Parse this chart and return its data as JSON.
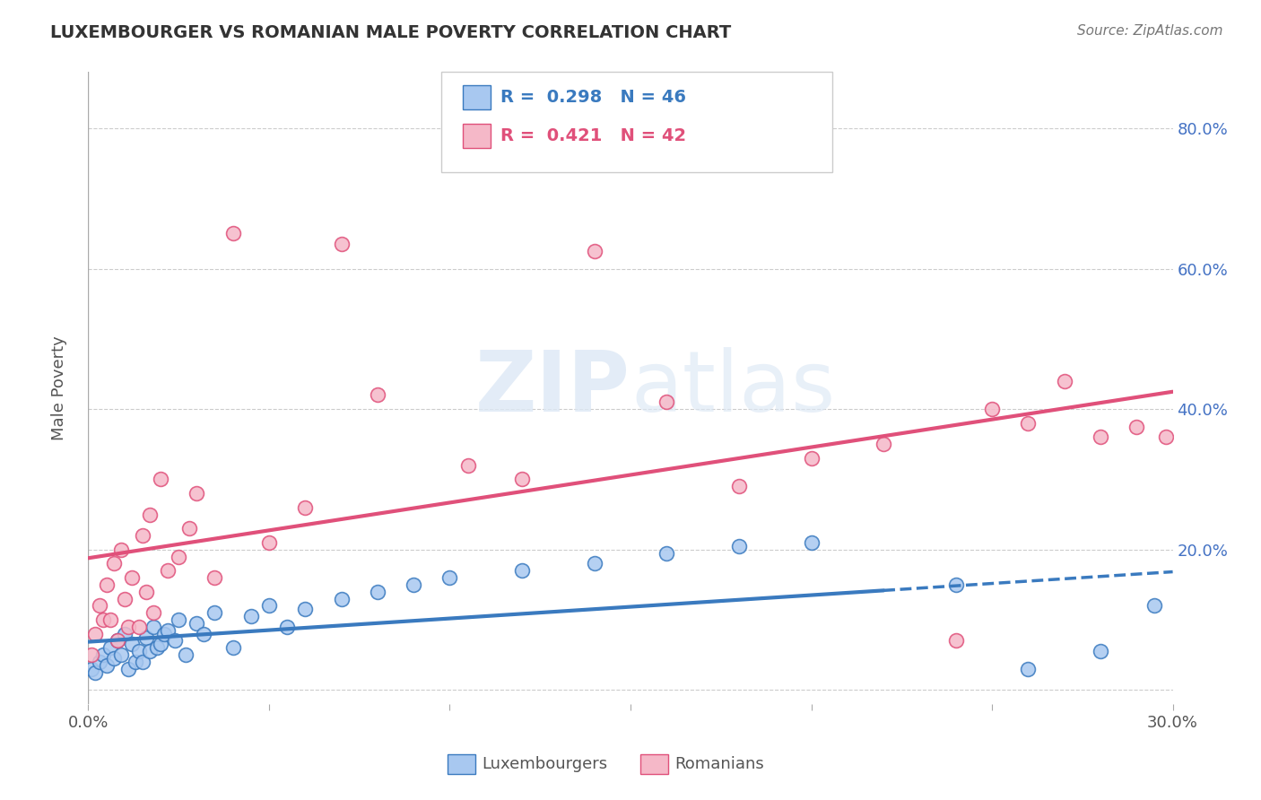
{
  "title": "LUXEMBOURGER VS ROMANIAN MALE POVERTY CORRELATION CHART",
  "source": "Source: ZipAtlas.com",
  "ylabel": "Male Poverty",
  "xlim": [
    0.0,
    30.0
  ],
  "ylim": [
    -2.0,
    88.0
  ],
  "yticks": [
    0.0,
    20.0,
    40.0,
    60.0,
    80.0
  ],
  "ytick_labels": [
    "",
    "20.0%",
    "40.0%",
    "60.0%",
    "80.0%"
  ],
  "xticks": [
    0.0,
    5.0,
    10.0,
    15.0,
    20.0,
    25.0,
    30.0
  ],
  "lux_color": "#a8c8f0",
  "lux_line_color": "#3a7abf",
  "rom_color": "#f5b8c8",
  "rom_line_color": "#e0507a",
  "lux_R": 0.298,
  "lux_N": 46,
  "rom_R": 0.421,
  "rom_N": 42,
  "legend_label_lux": "Luxembourgers",
  "legend_label_rom": "Romanians",
  "lux_x": [
    0.1,
    0.2,
    0.3,
    0.4,
    0.5,
    0.6,
    0.7,
    0.8,
    0.9,
    1.0,
    1.1,
    1.2,
    1.3,
    1.4,
    1.5,
    1.6,
    1.7,
    1.8,
    1.9,
    2.0,
    2.1,
    2.2,
    2.4,
    2.5,
    2.7,
    3.0,
    3.2,
    3.5,
    4.0,
    4.5,
    5.0,
    5.5,
    6.0,
    7.0,
    8.0,
    9.0,
    10.0,
    12.0,
    14.0,
    16.0,
    18.0,
    20.0,
    24.0,
    26.0,
    28.0,
    29.5
  ],
  "lux_y": [
    3.0,
    2.5,
    4.0,
    5.0,
    3.5,
    6.0,
    4.5,
    7.0,
    5.0,
    8.0,
    3.0,
    6.5,
    4.0,
    5.5,
    4.0,
    7.5,
    5.5,
    9.0,
    6.0,
    6.5,
    8.0,
    8.5,
    7.0,
    10.0,
    5.0,
    9.5,
    8.0,
    11.0,
    6.0,
    10.5,
    12.0,
    9.0,
    11.5,
    13.0,
    14.0,
    15.0,
    16.0,
    17.0,
    18.0,
    19.5,
    20.5,
    21.0,
    15.0,
    3.0,
    5.5,
    12.0
  ],
  "rom_x": [
    0.1,
    0.2,
    0.3,
    0.4,
    0.5,
    0.6,
    0.7,
    0.8,
    0.9,
    1.0,
    1.1,
    1.2,
    1.4,
    1.5,
    1.6,
    1.7,
    1.8,
    2.0,
    2.2,
    2.5,
    2.8,
    3.0,
    3.5,
    4.0,
    5.0,
    6.0,
    7.0,
    8.0,
    10.5,
    12.0,
    14.0,
    16.0,
    18.0,
    20.0,
    22.0,
    24.0,
    25.0,
    26.0,
    27.0,
    28.0,
    29.0,
    29.8
  ],
  "rom_y": [
    5.0,
    8.0,
    12.0,
    10.0,
    15.0,
    10.0,
    18.0,
    7.0,
    20.0,
    13.0,
    9.0,
    16.0,
    9.0,
    22.0,
    14.0,
    25.0,
    11.0,
    30.0,
    17.0,
    19.0,
    23.0,
    28.0,
    16.0,
    65.0,
    21.0,
    26.0,
    63.5,
    42.0,
    32.0,
    30.0,
    62.5,
    41.0,
    29.0,
    33.0,
    35.0,
    7.0,
    40.0,
    38.0,
    44.0,
    36.0,
    37.5,
    36.0
  ]
}
